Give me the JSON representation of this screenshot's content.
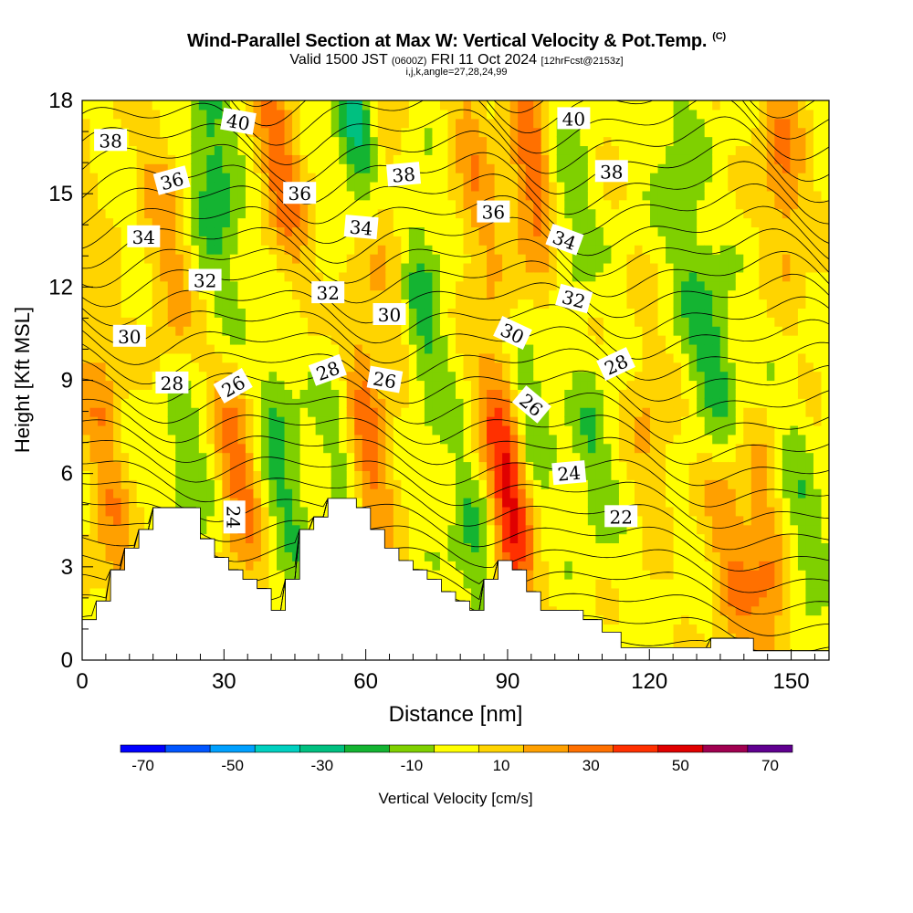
{
  "title": {
    "line1_main": "Wind-Parallel Section at Max W: Vertical Velocity & Pot.Temp.",
    "line1_mark": "(C)",
    "line2_valid": "Valid 1500 JST",
    "line2_utc": "(0600Z)",
    "line2_date": "FRI 11 Oct 2024",
    "line2_fcst": "[12hrFcst@2153z]",
    "line3": "i,j,k,angle=27,28,24,99"
  },
  "chart_data": {
    "type": "heatmap",
    "xlabel": "Distance [nm]",
    "ylabel": "Height [Kft MSL]",
    "xlim": [
      0,
      158
    ],
    "ylim": [
      0,
      18
    ],
    "x_ticks": [
      0,
      30,
      60,
      90,
      120,
      150
    ],
    "y_ticks": [
      0,
      3,
      6,
      9,
      12,
      15,
      18
    ],
    "colorbar": {
      "label": "Vertical Velocity [cm/s]",
      "ticks": [
        -70,
        -50,
        -30,
        -10,
        10,
        30,
        50,
        70
      ],
      "range": [
        -75,
        75
      ],
      "bins": [
        {
          "from": -75,
          "to": -65,
          "color": "#0000ff"
        },
        {
          "from": -65,
          "to": -55,
          "color": "#0055ff"
        },
        {
          "from": -55,
          "to": -45,
          "color": "#00a0ff"
        },
        {
          "from": -45,
          "to": -35,
          "color": "#00d0c0"
        },
        {
          "from": -35,
          "to": -25,
          "color": "#00c080"
        },
        {
          "from": -25,
          "to": -15,
          "color": "#14b432"
        },
        {
          "from": -15,
          "to": -5,
          "color": "#7fd000"
        },
        {
          "from": -5,
          "to": 5,
          "color": "#ffff00"
        },
        {
          "from": 5,
          "to": 15,
          "color": "#ffd400"
        },
        {
          "from": 15,
          "to": 25,
          "color": "#ffa000"
        },
        {
          "from": 25,
          "to": 35,
          "color": "#ff7000"
        },
        {
          "from": 35,
          "to": 45,
          "color": "#ff3000"
        },
        {
          "from": 45,
          "to": 55,
          "color": "#e00000"
        },
        {
          "from": 55,
          "to": 65,
          "color": "#a00050"
        },
        {
          "from": 65,
          "to": 75,
          "color": "#600090"
        }
      ]
    },
    "updrafts": [
      {
        "x": 5,
        "z_bottom": 2,
        "z_top": 11,
        "w": 20
      },
      {
        "x": 18,
        "z_bottom": 10,
        "z_top": 16,
        "w": 18
      },
      {
        "x": 33,
        "z_bottom": 4,
        "z_top": 8,
        "w": 28
      },
      {
        "x": 42,
        "z_bottom": 14,
        "z_top": 18,
        "w": 30
      },
      {
        "x": 60,
        "z_bottom": 5,
        "z_top": 10,
        "w": 30
      },
      {
        "x": 64,
        "z_bottom": 12,
        "z_top": 18,
        "w": 15
      },
      {
        "x": 83,
        "z_bottom": 13,
        "z_top": 18,
        "w": 18
      },
      {
        "x": 90,
        "z_bottom": 3,
        "z_top": 8,
        "w": 45
      },
      {
        "x": 95,
        "z_bottom": 13,
        "z_top": 18,
        "w": 30
      },
      {
        "x": 120,
        "z_bottom": 6,
        "z_top": 9,
        "w": 15
      },
      {
        "x": 137,
        "z_bottom": 1,
        "z_top": 6,
        "w": 20
      },
      {
        "x": 145,
        "z_bottom": 1,
        "z_top": 5,
        "w": 25
      },
      {
        "x": 148,
        "z_bottom": 14,
        "z_top": 18,
        "w": 25
      }
    ],
    "downdrafts": [
      {
        "x": 28,
        "z_bottom": 13,
        "z_top": 18,
        "w": -25
      },
      {
        "x": 22,
        "z_bottom": 5,
        "z_top": 8,
        "w": -20
      },
      {
        "x": 42,
        "z_bottom": 4,
        "z_top": 9,
        "w": -20
      },
      {
        "x": 55,
        "z_bottom": 6,
        "z_top": 9,
        "w": -15
      },
      {
        "x": 58,
        "z_bottom": 16,
        "z_top": 18,
        "w": -35
      },
      {
        "x": 72,
        "z_bottom": 9,
        "z_top": 14,
        "w": -20
      },
      {
        "x": 83,
        "z_bottom": 2,
        "z_top": 5,
        "w": -20
      },
      {
        "x": 95,
        "z_bottom": 7,
        "z_top": 10,
        "w": -20
      },
      {
        "x": 103,
        "z_bottom": 13,
        "z_top": 16,
        "w": -15
      },
      {
        "x": 108,
        "z_bottom": 5,
        "z_top": 8,
        "w": -15
      },
      {
        "x": 127,
        "z_bottom": 12,
        "z_top": 18,
        "w": -15
      },
      {
        "x": 134,
        "z_bottom": 8,
        "z_top": 11,
        "w": -25
      },
      {
        "x": 152,
        "z_bottom": 2,
        "z_top": 6,
        "w": -15
      }
    ],
    "terrain": [
      [
        0,
        1.3
      ],
      [
        3,
        1.3
      ],
      [
        3,
        1.9
      ],
      [
        6,
        1.9
      ],
      [
        6,
        2.9
      ],
      [
        9,
        2.9
      ],
      [
        9,
        3.6
      ],
      [
        12,
        3.6
      ],
      [
        12,
        4.2
      ],
      [
        15,
        4.2
      ],
      [
        15,
        4.9
      ],
      [
        25,
        4.9
      ],
      [
        25,
        3.9
      ],
      [
        28,
        3.9
      ],
      [
        28,
        3.3
      ],
      [
        31,
        3.3
      ],
      [
        31,
        2.9
      ],
      [
        34,
        2.9
      ],
      [
        34,
        2.6
      ],
      [
        37,
        2.6
      ],
      [
        37,
        2.3
      ],
      [
        40,
        2.3
      ],
      [
        40,
        1.6
      ],
      [
        43,
        1.6
      ],
      [
        43,
        2.6
      ],
      [
        46,
        2.6
      ],
      [
        46,
        4.2
      ],
      [
        49,
        4.2
      ],
      [
        49,
        4.6
      ],
      [
        52,
        4.6
      ],
      [
        52,
        5.2
      ],
      [
        58,
        5.2
      ],
      [
        58,
        4.9
      ],
      [
        61,
        4.9
      ],
      [
        61,
        4.2
      ],
      [
        64,
        4.2
      ],
      [
        64,
        3.6
      ],
      [
        67,
        3.6
      ],
      [
        67,
        3.2
      ],
      [
        70,
        3.2
      ],
      [
        70,
        2.9
      ],
      [
        73,
        2.9
      ],
      [
        73,
        2.6
      ],
      [
        76,
        2.6
      ],
      [
        76,
        2.2
      ],
      [
        79,
        2.2
      ],
      [
        79,
        1.9
      ],
      [
        82,
        1.9
      ],
      [
        82,
        1.6
      ],
      [
        85,
        1.6
      ],
      [
        85,
        2.6
      ],
      [
        88,
        2.6
      ],
      [
        88,
        3.2
      ],
      [
        91,
        3.2
      ],
      [
        91,
        2.9
      ],
      [
        94,
        2.9
      ],
      [
        94,
        2.2
      ],
      [
        97,
        2.2
      ],
      [
        97,
        1.6
      ],
      [
        106,
        1.6
      ],
      [
        106,
        1.3
      ],
      [
        110,
        1.3
      ],
      [
        110,
        0.9
      ],
      [
        114,
        0.9
      ],
      [
        114,
        0.4
      ],
      [
        133,
        0.4
      ],
      [
        133,
        0.7
      ],
      [
        142,
        0.7
      ],
      [
        142,
        0.3
      ],
      [
        158,
        0.3
      ]
    ],
    "potential_temperature_contours": [
      {
        "value": 22,
        "label_at": [
          114,
          4.6
        ],
        "label_angle": 0
      },
      {
        "value": 24,
        "label_at": [
          103,
          6.0
        ],
        "label_angle": -5
      },
      {
        "value": 24,
        "label_at": [
          32,
          4.6
        ],
        "label_angle": 90
      },
      {
        "value": 26,
        "label_at": [
          32,
          8.8
        ],
        "label_angle": -30
      },
      {
        "value": 26,
        "label_at": [
          64,
          9.0
        ],
        "label_angle": 10
      },
      {
        "value": 26,
        "label_at": [
          95,
          8.2
        ],
        "label_angle": 40
      },
      {
        "value": 28,
        "label_at": [
          19,
          8.9
        ],
        "label_angle": 0
      },
      {
        "value": 28,
        "label_at": [
          52,
          9.3
        ],
        "label_angle": -20
      },
      {
        "value": 28,
        "label_at": [
          113,
          9.5
        ],
        "label_angle": -25
      },
      {
        "value": 30,
        "label_at": [
          10,
          10.4
        ],
        "label_angle": 0
      },
      {
        "value": 30,
        "label_at": [
          65,
          11.1
        ],
        "label_angle": 0
      },
      {
        "value": 30,
        "label_at": [
          91,
          10.5
        ],
        "label_angle": 25
      },
      {
        "value": 32,
        "label_at": [
          26,
          12.2
        ],
        "label_angle": 0
      },
      {
        "value": 32,
        "label_at": [
          52,
          11.8
        ],
        "label_angle": 0
      },
      {
        "value": 32,
        "label_at": [
          104,
          11.6
        ],
        "label_angle": 15
      },
      {
        "value": 34,
        "label_at": [
          13,
          13.6
        ],
        "label_angle": 0
      },
      {
        "value": 34,
        "label_at": [
          59,
          13.9
        ],
        "label_angle": 5
      },
      {
        "value": 34,
        "label_at": [
          102,
          13.5
        ],
        "label_angle": 20
      },
      {
        "value": 36,
        "label_at": [
          19,
          15.4
        ],
        "label_angle": -15
      },
      {
        "value": 36,
        "label_at": [
          46,
          15.0
        ],
        "label_angle": 0
      },
      {
        "value": 36,
        "label_at": [
          87,
          14.4
        ],
        "label_angle": 0
      },
      {
        "value": 38,
        "label_at": [
          6,
          16.7
        ],
        "label_angle": 0
      },
      {
        "value": 38,
        "label_at": [
          68,
          15.6
        ],
        "label_angle": -5
      },
      {
        "value": 38,
        "label_at": [
          112,
          15.7
        ],
        "label_angle": 0
      },
      {
        "value": 40,
        "label_at": [
          33,
          17.3
        ],
        "label_angle": 10
      },
      {
        "value": 40,
        "label_at": [
          104,
          17.4
        ],
        "label_angle": 0
      }
    ]
  }
}
